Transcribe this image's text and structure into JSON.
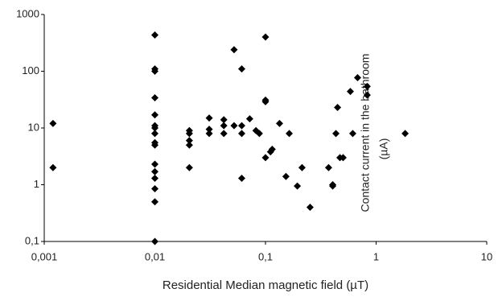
{
  "chart_data": {
    "type": "scatter",
    "x_label": "Residential Median magnetic field (µT)",
    "y_label": [
      "Contact current in the bathroom",
      "(µA)"
    ],
    "xscale": "log",
    "yscale": "log",
    "xlim": [
      0.001,
      10
    ],
    "ylim": [
      0.1,
      1000
    ],
    "xticks": [
      {
        "value": 0.001,
        "label": "0,001"
      },
      {
        "value": 0.01,
        "label": "0,01"
      },
      {
        "value": 0.1,
        "label": "0,1"
      },
      1,
      10
    ],
    "yticks": [
      {
        "value": 0.1,
        "label": "0,1"
      },
      1,
      10,
      100,
      1000
    ],
    "grid": false,
    "series": [
      {
        "color": "#000000",
        "x": [
          0.0012,
          0.0012,
          0.01,
          0.01,
          0.01,
          0.01,
          0.01,
          0.01,
          0.01,
          0.01,
          0.01,
          0.01,
          0.01,
          0.01,
          0.01,
          0.01,
          0.01,
          0.01,
          0.0205,
          0.0205,
          0.0205,
          0.0205,
          0.0205,
          0.031,
          0.031,
          0.031,
          0.042,
          0.042,
          0.042,
          0.052,
          0.052,
          0.061,
          0.061,
          0.061,
          0.061,
          0.072,
          0.082,
          0.088,
          0.1,
          0.1,
          0.1,
          0.1,
          0.111,
          0.115,
          0.134,
          0.153,
          0.164,
          0.194,
          0.214,
          0.253,
          0.372,
          0.405,
          0.405,
          0.433,
          0.448,
          0.471,
          0.503,
          0.585,
          0.615,
          0.68,
          0.83,
          0.83,
          1.83
        ],
        "values": [
          12,
          2,
          435,
          110,
          100,
          34,
          17,
          11,
          10,
          8,
          5.5,
          5,
          2.3,
          1.7,
          1.3,
          0.85,
          0.5,
          0.1,
          9,
          8,
          6,
          5,
          2,
          15,
          9.5,
          8,
          14,
          11,
          8,
          240,
          11,
          110,
          11,
          8,
          1.3,
          14.5,
          9,
          8,
          400,
          31,
          29,
          3,
          3.8,
          4.2,
          12,
          1.4,
          8,
          0.95,
          2,
          0.4,
          2,
          1,
          0.95,
          8,
          23,
          3,
          3,
          44,
          8,
          77,
          54,
          38,
          8
        ]
      }
    ]
  }
}
